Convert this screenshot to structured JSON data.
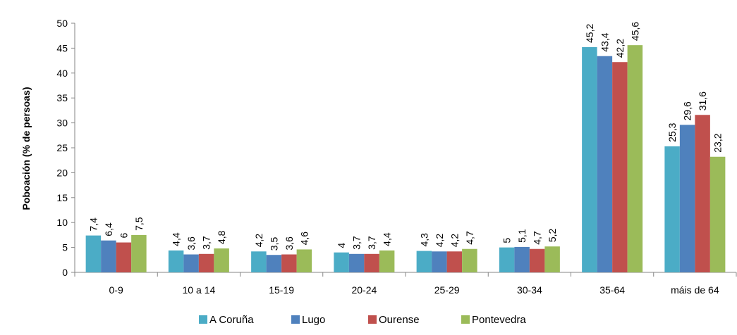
{
  "chart_data": {
    "type": "bar",
    "ylabel": "Poboación (% de persoas)",
    "xlabel": "",
    "ylim": [
      0,
      50
    ],
    "yticks": [
      0,
      5,
      10,
      15,
      20,
      25,
      30,
      35,
      40,
      45,
      50
    ],
    "grid": false,
    "legend_position": "bottom",
    "categories": [
      "0-9",
      "10 a 14",
      "15-19",
      "20-24",
      "25-29",
      "30-34",
      "35-64",
      "máis de 64"
    ],
    "series": [
      {
        "name": "A Coruña",
        "color": "#4BACC6",
        "values": [
          7.4,
          4.4,
          4.2,
          4,
          4.3,
          5,
          45.2,
          25.3
        ]
      },
      {
        "name": "Lugo",
        "color": "#4F81BD",
        "values": [
          6.4,
          3.6,
          3.5,
          3.7,
          4.2,
          5.1,
          43.4,
          29.6
        ]
      },
      {
        "name": "Ourense",
        "color": "#C0504D",
        "values": [
          6,
          3.7,
          3.6,
          3.7,
          4.2,
          4.7,
          42.2,
          31.6
        ]
      },
      {
        "name": "Pontevedra",
        "color": "#9BBB59",
        "values": [
          7.5,
          4.8,
          4.6,
          4.4,
          4.7,
          5.2,
          45.6,
          23.2
        ]
      }
    ],
    "data_labels": [
      [
        "7,4",
        "4,4",
        "4,2",
        "4",
        "4,3",
        "5",
        "45,2",
        "25,3"
      ],
      [
        "6,4",
        "3,6",
        "3,5",
        "3,7",
        "4,2",
        "5,1",
        "43,4",
        "29,6"
      ],
      [
        "6",
        "3,7",
        "3,6",
        "3,7",
        "4,2",
        "4,7",
        "42,2",
        "31,6"
      ],
      [
        "7,5",
        "4,8",
        "4,6",
        "4,4",
        "4,7",
        "5,2",
        "45,6",
        "23,2"
      ]
    ]
  }
}
